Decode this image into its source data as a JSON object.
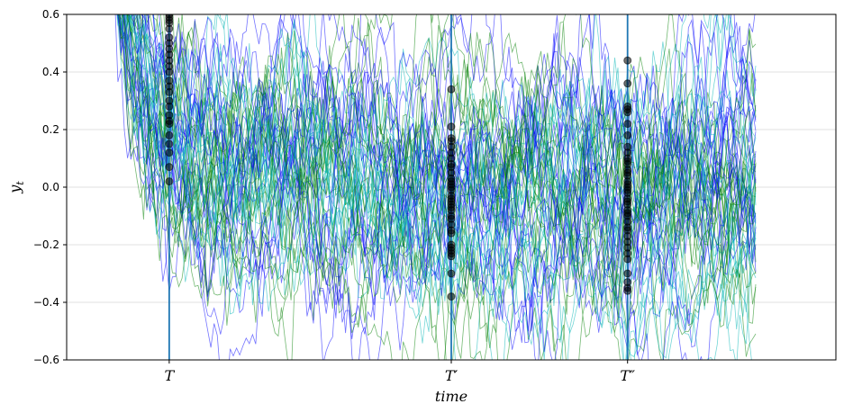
{
  "chart_data": {
    "type": "line",
    "title": "",
    "xlabel": "time",
    "ylabel": "y",
    "ylabel_subscript": "t",
    "ylim": [
      -0.6,
      0.6
    ],
    "yticks": [
      -0.6,
      -0.4,
      -0.2,
      0.0,
      0.2,
      0.4,
      0.6
    ],
    "ytick_labels": [
      "−0.6",
      "−0.4",
      "−0.2",
      "0.0",
      "0.2",
      "0.4",
      "0.6"
    ],
    "grid": "horizontal",
    "legend": "none",
    "xlim": [
      -15,
      225
    ],
    "x_range": [
      0,
      200
    ],
    "vertical_markers": [
      {
        "label": "T",
        "x": 17
      },
      {
        "label": "T′",
        "x": 105
      },
      {
        "label": "T″",
        "x": 160
      }
    ],
    "series_colors": [
      "#0000ff",
      "#00b4b4",
      "#008000"
    ],
    "marker_color": "#000000",
    "vline_color": "#1f77b4",
    "n_paths": 60,
    "process": {
      "start_range": [
        0.65,
        1.15
      ],
      "mean": 0.0,
      "decay_per_step": 0.93,
      "noise_std": 0.09
    },
    "scatter_points": [
      {
        "x_label": "T",
        "values": [
          0.02,
          0.07,
          0.12,
          0.15,
          0.18,
          0.22,
          0.23,
          0.25,
          0.28,
          0.3,
          0.33,
          0.35,
          0.37,
          0.4,
          0.42,
          0.44,
          0.46,
          0.48,
          0.5,
          0.52,
          0.55,
          0.57,
          0.58,
          0.59,
          0.6
        ]
      },
      {
        "x_label": "T′",
        "values": [
          0.34,
          0.21,
          0.17,
          0.16,
          0.14,
          0.12,
          0.1,
          0.08,
          0.07,
          0.05,
          0.03,
          0.02,
          0.01,
          0.0,
          -0.01,
          -0.03,
          -0.04,
          -0.05,
          -0.06,
          -0.07,
          -0.08,
          -0.1,
          -0.11,
          -0.13,
          -0.15,
          -0.16,
          -0.2,
          -0.21,
          -0.22,
          -0.23,
          -0.24,
          -0.3,
          -0.38
        ]
      },
      {
        "x_label": "T″",
        "values": [
          0.44,
          0.36,
          0.28,
          0.27,
          0.26,
          0.22,
          0.18,
          0.14,
          0.12,
          0.1,
          0.09,
          0.08,
          0.06,
          0.05,
          0.04,
          0.02,
          0.01,
          0.0,
          -0.01,
          -0.02,
          -0.04,
          -0.05,
          -0.06,
          -0.08,
          -0.09,
          -0.1,
          -0.12,
          -0.14,
          -0.15,
          -0.17,
          -0.19,
          -0.21,
          -0.23,
          -0.25,
          -0.3,
          -0.33,
          -0.35,
          -0.36
        ]
      }
    ]
  }
}
